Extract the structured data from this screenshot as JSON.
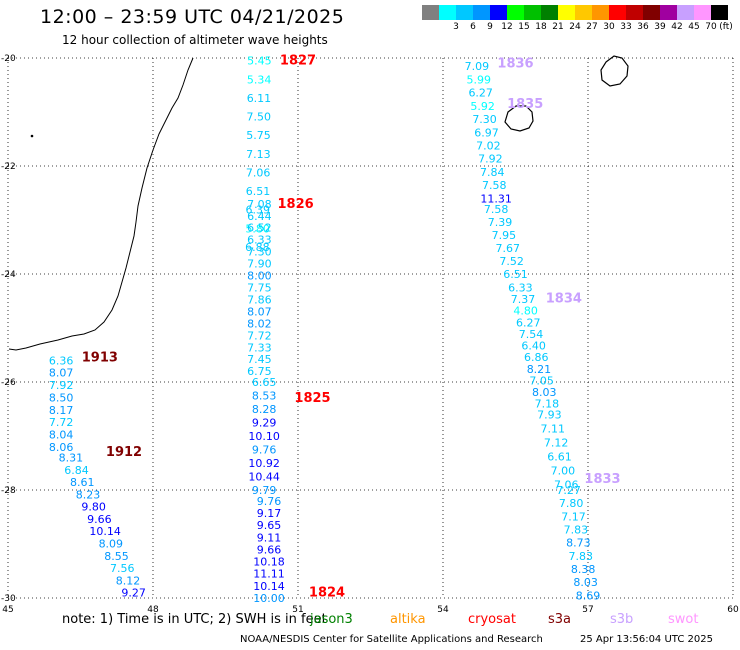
{
  "header": {
    "title": "12:00 – 23:59 UTC 04/21/2025",
    "subtitle": "12 hour collection of altimeter wave heights"
  },
  "legend": {
    "unit_label": "(ft)",
    "bins": [
      {
        "label": "",
        "color": "#808080"
      },
      {
        "label": "3",
        "color": "#00ffff"
      },
      {
        "label": "6",
        "color": "#00c8ff"
      },
      {
        "label": "9",
        "color": "#0096ff"
      },
      {
        "label": "12",
        "color": "#0000ff"
      },
      {
        "label": "15",
        "color": "#00ff00"
      },
      {
        "label": "18",
        "color": "#00c000"
      },
      {
        "label": "21",
        "color": "#008000"
      },
      {
        "label": "24",
        "color": "#ffff00"
      },
      {
        "label": "27",
        "color": "#ffc800"
      },
      {
        "label": "30",
        "color": "#ff9600"
      },
      {
        "label": "33",
        "color": "#ff0000"
      },
      {
        "label": "36",
        "color": "#c00000"
      },
      {
        "label": "39",
        "color": "#800000"
      },
      {
        "label": "42",
        "color": "#a000a0"
      },
      {
        "label": "45",
        "color": "#c8a0ff"
      },
      {
        "label": "70",
        "color": "#ff96ff"
      },
      {
        "label": "",
        "color": "#000000"
      }
    ]
  },
  "map": {
    "lon_range": [
      45,
      60
    ],
    "lat_range": [
      -30,
      -20
    ],
    "lon_ticks": [
      "45",
      "48",
      "51",
      "54",
      "57",
      "60"
    ],
    "lat_ticks": [
      "-20",
      "-22",
      "-24",
      "-26",
      "-28",
      "-30"
    ],
    "grid": "dotted",
    "coastline_color": "#000000",
    "tracks": [
      {
        "time_label": "1827",
        "label_color": "#ff0000",
        "lon_start": 50.2,
        "lat_start": -20.05,
        "lon_end": 50.16,
        "lat_end": -23.5,
        "values": [
          "5.45",
          "5.34",
          "6.11",
          "7.50",
          "5.75",
          "7.13",
          "7.06",
          "6.51",
          "6.39",
          "5.80",
          "6.88"
        ],
        "colors": [
          "#00ffff",
          "#00ffff",
          "#00c8ff",
          "#00c8ff",
          "#00c8ff",
          "#00c8ff",
          "#00c8ff",
          "#00c8ff",
          "#00c8ff",
          "#00ffff",
          "#00c8ff"
        ]
      },
      {
        "time_label": "1826",
        "label_color": "#ff0000",
        "lon_start": 50.2,
        "lat_start": -22.7,
        "lon_end": 50.2,
        "lat_end": -25.8,
        "values": [
          "7.08",
          "6.44",
          "6.52",
          "6.33",
          "7.30",
          "7.90",
          "8.00",
          "7.75",
          "7.86",
          "8.07",
          "8.02",
          "7.72",
          "7.33",
          "7.45",
          "6.75"
        ],
        "colors": [
          "#00c8ff",
          "#00c8ff",
          "#00c8ff",
          "#00c8ff",
          "#00c8ff",
          "#00c8ff",
          "#0096ff",
          "#00c8ff",
          "#00c8ff",
          "#0096ff",
          "#0096ff",
          "#00c8ff",
          "#00c8ff",
          "#00c8ff",
          "#00c8ff"
        ]
      },
      {
        "time_label": "1825",
        "label_color": "#ff0000",
        "lon_start": 50.3,
        "lat_start": -26.0,
        "lon_end": 50.3,
        "lat_end": -28.0,
        "values": [
          "6.65",
          "8.53",
          "8.28",
          "9.29",
          "10.10",
          "9.76",
          "10.92",
          "10.44",
          "9.79"
        ],
        "colors": [
          "#00c8ff",
          "#0096ff",
          "#0096ff",
          "#0000ff",
          "#0000ff",
          "#0096ff",
          "#0000ff",
          "#0000ff",
          "#0096ff"
        ]
      },
      {
        "time_label": "1824",
        "label_color": "#ff0000",
        "lon_start": 50.4,
        "lat_start": -28.2,
        "lon_end": 50.4,
        "lat_end": -30.0,
        "values": [
          "9.76",
          "9.17",
          "9.65",
          "9.11",
          "9.66",
          "10.18",
          "11.11",
          "10.14",
          "10.00"
        ],
        "colors": [
          "#0096ff",
          "#0000ff",
          "#0000ff",
          "#0000ff",
          "#0000ff",
          "#0000ff",
          "#0000ff",
          "#0000ff",
          "#0096ff"
        ]
      },
      {
        "time_label": "1913",
        "label_color": "#800000",
        "lon_start": 46.1,
        "lat_start": -25.6,
        "lon_end": 46.1,
        "lat_end": -27.2,
        "values": [
          "6.36",
          "8.07",
          "7.92",
          "8.50",
          "8.17",
          "7.72",
          "8.04",
          "8.06"
        ],
        "colors": [
          "#00c8ff",
          "#0096ff",
          "#00c8ff",
          "#0096ff",
          "#0096ff",
          "#00c8ff",
          "#0096ff",
          "#0096ff"
        ]
      },
      {
        "time_label": "1912",
        "label_color": "#800000",
        "lon_start": 46.3,
        "lat_start": -27.4,
        "lon_end": 47.6,
        "lat_end": -29.9,
        "values": [
          "8.31",
          "6.84",
          "8.61",
          "8.23",
          "9.80",
          "9.66",
          "10.14",
          "8.09",
          "8.55",
          "7.56",
          "8.12",
          "9.27"
        ],
        "colors": [
          "#0096ff",
          "#00c8ff",
          "#0096ff",
          "#0096ff",
          "#0000ff",
          "#0000ff",
          "#0000ff",
          "#0096ff",
          "#0096ff",
          "#00c8ff",
          "#0096ff",
          "#0000ff"
        ]
      },
      {
        "time_label": "1836",
        "label_color": "#c8a0ff",
        "lon_start": 54.7,
        "lat_start": -20.15,
        "lon_end": 55.1,
        "lat_end": -22.6,
        "values": [
          "7.09",
          "5.99",
          "6.27",
          "5.92",
          "7.30",
          "6.97",
          "7.02",
          "7.92",
          "7.84",
          "7.58",
          "11.31"
        ],
        "colors": [
          "#00c8ff",
          "#00ffff",
          "#00c8ff",
          "#00ffff",
          "#00c8ff",
          "#00c8ff",
          "#00c8ff",
          "#00c8ff",
          "#00c8ff",
          "#00c8ff",
          "#0000ff"
        ]
      },
      {
        "time_label": "1835",
        "label_color": "#c8a0ff",
        "lon_start": 55.1,
        "lat_start": -22.8,
        "lon_end": 55.5,
        "lat_end": -24.0,
        "values": [
          "7.58",
          "7.39",
          "7.95",
          "7.67",
          "7.52",
          "6.51"
        ],
        "colors": [
          "#00c8ff",
          "#00c8ff",
          "#00c8ff",
          "#00c8ff",
          "#00c8ff",
          "#00c8ff"
        ]
      },
      {
        "time_label": "1834",
        "label_color": "#c8a0ff",
        "lon_start": 55.6,
        "lat_start": -24.25,
        "lon_end": 56.15,
        "lat_end": -26.4,
        "values": [
          "6.33",
          "7.37",
          "4.80",
          "6.27",
          "7.54",
          "6.40",
          "6.86",
          "8.21",
          "7.05",
          "8.03",
          "7.18"
        ],
        "colors": [
          "#00c8ff",
          "#00c8ff",
          "#00ffff",
          "#00c8ff",
          "#00c8ff",
          "#00c8ff",
          "#00c8ff",
          "#0096ff",
          "#00c8ff",
          "#0096ff",
          "#00c8ff"
        ]
      },
      {
        "time_label": "1833",
        "label_color": "#c8a0ff",
        "lon_start": 56.2,
        "lat_start": -26.6,
        "lon_end": 56.55,
        "lat_end": -27.9,
        "values": [
          "7.93",
          "7.11",
          "7.12",
          "6.61",
          "7.00",
          "7.06"
        ],
        "colors": [
          "#00c8ff",
          "#00c8ff",
          "#00c8ff",
          "#00c8ff",
          "#00c8ff",
          "#00c8ff"
        ]
      },
      {
        "time_label": "",
        "label_color": "#c8a0ff",
        "lon_start": 56.6,
        "lat_start": -28.0,
        "lon_end": 57.0,
        "lat_end": -29.95,
        "values": [
          "7.27",
          "7.80",
          "7.17",
          "7.83",
          "8.73",
          "7.83",
          "8.38",
          "8.03",
          "8.69"
        ],
        "colors": [
          "#00c8ff",
          "#00c8ff",
          "#00c8ff",
          "#00c8ff",
          "#0096ff",
          "#00c8ff",
          "#0096ff",
          "#0096ff",
          "#0096ff"
        ]
      }
    ],
    "pass_labels": [
      {
        "text": "1827",
        "color": "#ff0000",
        "lon": 51.0,
        "lat": -20.05
      },
      {
        "text": "1826",
        "color": "#ff0000",
        "lon": 50.95,
        "lat": -22.7
      },
      {
        "text": "1825",
        "color": "#ff0000",
        "lon": 51.3,
        "lat": -26.3
      },
      {
        "text": "1824",
        "color": "#ff0000",
        "lon": 51.6,
        "lat": -29.9
      },
      {
        "text": "1913",
        "color": "#800000",
        "lon": 46.9,
        "lat": -25.55
      },
      {
        "text": "1912",
        "color": "#800000",
        "lon": 47.4,
        "lat": -27.3
      },
      {
        "text": "1836",
        "color": "#c8a0ff",
        "lon": 55.5,
        "lat": -20.1
      },
      {
        "text": "1835",
        "color": "#c8a0ff",
        "lon": 55.7,
        "lat": -20.85
      },
      {
        "text": "1834",
        "color": "#c8a0ff",
        "lon": 56.5,
        "lat": -24.45
      },
      {
        "text": "1833",
        "color": "#c8a0ff",
        "lon": 57.3,
        "lat": -27.8
      }
    ]
  },
  "footer": {
    "note": "note:  1) Time is in UTC; 2) SWH is in feet",
    "satellites": [
      {
        "name": "jason3",
        "color": "#008000"
      },
      {
        "name": "altika",
        "color": "#ff9600"
      },
      {
        "name": "cryosat",
        "color": "#ff0000"
      },
      {
        "name": "s3a",
        "color": "#800000"
      },
      {
        "name": "s3b",
        "color": "#c8a0ff"
      },
      {
        "name": "swot",
        "color": "#ff96ff"
      }
    ],
    "credit": "NOAA/NESDIS Center for Satellite Applications and Research",
    "stamp": "25 Apr 13:56:04 UTC 2025"
  }
}
